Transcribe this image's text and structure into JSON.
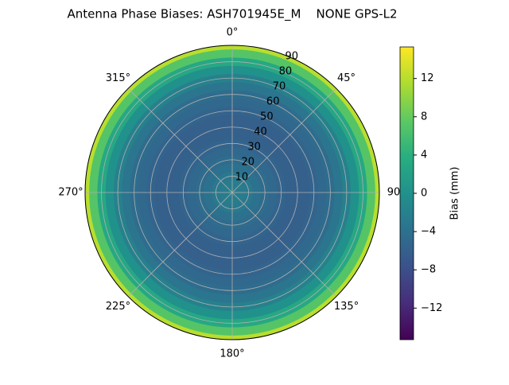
{
  "chart_data": {
    "type": "polar-contour",
    "title": "Antenna Phase Biases: ASH701945E_M    NONE GPS-L2",
    "colormap": "viridis",
    "r": [
      0,
      5,
      10,
      15,
      20,
      25,
      30,
      35,
      40,
      45,
      50,
      55,
      60,
      65,
      70,
      75,
      80,
      85,
      90
    ],
    "values": [
      -2,
      -2.5,
      -3,
      -3.8,
      -4.5,
      -5,
      -5.5,
      -5.8,
      -6,
      -6,
      -5.5,
      -5,
      -4.5,
      -3.5,
      -2,
      0,
      3,
      7,
      12
    ],
    "rlim": [
      0,
      90
    ],
    "rticks": [
      10,
      20,
      30,
      40,
      50,
      60,
      70,
      80,
      90
    ],
    "thetaticks": [
      {
        "value": 0,
        "label": "0°"
      },
      {
        "value": 45,
        "label": "45°"
      },
      {
        "value": 90,
        "label": "90"
      },
      {
        "value": 135,
        "label": "135°"
      },
      {
        "value": 180,
        "label": "180°"
      },
      {
        "value": 225,
        "label": "225°"
      },
      {
        "value": 270,
        "label": "270°"
      },
      {
        "value": 315,
        "label": "315°"
      }
    ],
    "grid": true,
    "colorbar_label": "Bias (mm)",
    "clim": [
      -15.3,
      15.3
    ],
    "cticks": [
      {
        "value": -12,
        "label": "−12"
      },
      {
        "value": -8,
        "label": "−8"
      },
      {
        "value": -4,
        "label": "−4"
      },
      0,
      4,
      8,
      12
    ]
  }
}
